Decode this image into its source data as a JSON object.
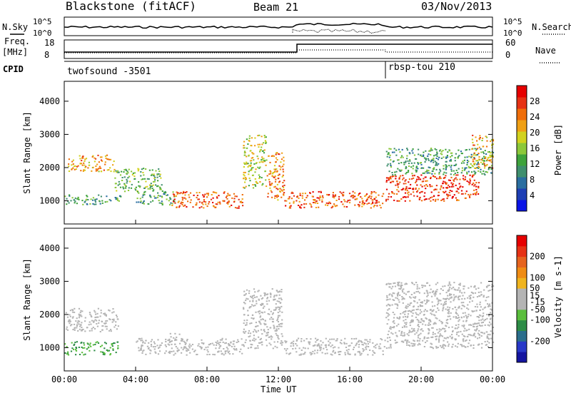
{
  "header": {
    "station": "Blackstone (fitACF)",
    "beam": "Beam 21",
    "date": "03/Nov/2013"
  },
  "status_panels": {
    "nsky_label": "N.Sky",
    "nsearch_label": "N.Search",
    "freq_label_line1": "Freq.",
    "freq_label_line2": "[MHz]",
    "nave_label": "Nave",
    "cpid_label": "CPID",
    "noise_left_ticks": [
      "10^5",
      "10^0"
    ],
    "noise_right_ticks": [
      "10^5",
      "10^0"
    ],
    "freq_left_ticks": [
      "18",
      "8"
    ],
    "nave_right_ticks": [
      "60",
      "0"
    ],
    "cpid_segments": [
      {
        "name": "twofsound -3501",
        "start_hour": 0,
        "end_hour": 18
      },
      {
        "name": "rbsp-tou 210",
        "start_hour": 18,
        "end_hour": 24
      }
    ]
  },
  "x_axis": {
    "label": "Time UT",
    "ticks": [
      "00:00",
      "04:00",
      "08:00",
      "12:00",
      "16:00",
      "20:00",
      "00:00"
    ]
  },
  "colors": {
    "power_scale": [
      "#0a14e6",
      "#1e3fb4",
      "#2a6ea0",
      "#3f8f6e",
      "#3ea33c",
      "#8cc83a",
      "#d2d21e",
      "#f0a014",
      "#f06e0a",
      "#e63214",
      "#e60000"
    ],
    "velocity_scale": [
      "#1414a0",
      "#2838c8",
      "#2a6e8c",
      "#2d8c46",
      "#5abe3c",
      "#b4b4b4",
      "#b4b4b4",
      "#f0b41e",
      "#f08c14",
      "#e6641e",
      "#e63214",
      "#e60000"
    ]
  },
  "chart_data": [
    {
      "type": "heatmap",
      "title": "Power",
      "xlabel": "Time UT",
      "ylabel": "Slant Range [km]",
      "xlim_hours": [
        0,
        24
      ],
      "ylim": [
        300,
        4600
      ],
      "yticks": [
        1000,
        2000,
        3000,
        4000
      ],
      "colorbar": {
        "label": "Power [dB]",
        "ticks": [
          4,
          8,
          12,
          16,
          20,
          24,
          28
        ],
        "range": [
          0,
          32
        ]
      },
      "regions": [
        {
          "t0": 0.0,
          "t1": 3.2,
          "r0": 900,
          "r1": 1200,
          "value": 12
        },
        {
          "t0": 0.2,
          "t1": 2.8,
          "r0": 1900,
          "r1": 2400,
          "value": 22
        },
        {
          "t0": 2.8,
          "t1": 5.5,
          "r0": 1300,
          "r1": 2000,
          "value": 14
        },
        {
          "t0": 4.0,
          "t1": 6.2,
          "r0": 900,
          "r1": 1300,
          "value": 12
        },
        {
          "t0": 6.0,
          "t1": 10.0,
          "r0": 800,
          "r1": 1300,
          "value": 26
        },
        {
          "t0": 10.0,
          "t1": 11.3,
          "r0": 1400,
          "r1": 3000,
          "value": 18
        },
        {
          "t0": 11.3,
          "t1": 12.3,
          "r0": 1000,
          "r1": 2500,
          "value": 24
        },
        {
          "t0": 12.3,
          "t1": 18.0,
          "r0": 800,
          "r1": 1300,
          "value": 26
        },
        {
          "t0": 18.0,
          "t1": 23.2,
          "r0": 1000,
          "r1": 1800,
          "value": 28
        },
        {
          "t0": 18.0,
          "t1": 24.0,
          "r0": 1800,
          "r1": 2600,
          "value": 12
        },
        {
          "t0": 22.8,
          "t1": 24.0,
          "r0": 2000,
          "r1": 3000,
          "value": 22
        }
      ]
    },
    {
      "type": "heatmap",
      "title": "Velocity",
      "xlabel": "Time UT",
      "ylabel": "Slant Range [km]",
      "xlim_hours": [
        0,
        24
      ],
      "ylim": [
        300,
        4600
      ],
      "yticks": [
        1000,
        2000,
        3000,
        4000
      ],
      "colorbar": {
        "label": "Velocity [m s-1]",
        "ticks": [
          200,
          100,
          50,
          15,
          -15,
          -50,
          -100,
          -200
        ],
        "range": [
          -300,
          300
        ]
      },
      "regions": [
        {
          "t0": 0.0,
          "t1": 3.0,
          "r0": 1500,
          "r1": 2200,
          "value": 0
        },
        {
          "t0": 0.0,
          "t1": 3.0,
          "r0": 800,
          "r1": 1200,
          "value": -100
        },
        {
          "t0": 4.0,
          "t1": 6.0,
          "r0": 800,
          "r1": 1300,
          "value": -40
        },
        {
          "t0": 5.8,
          "t1": 6.6,
          "r0": 800,
          "r1": 1500,
          "value": 40
        },
        {
          "t0": 6.6,
          "t1": 10.0,
          "r0": 800,
          "r1": 1300,
          "value": -40
        },
        {
          "t0": 10.0,
          "t1": 12.2,
          "r0": 1000,
          "r1": 2800,
          "value": 40
        },
        {
          "t0": 12.3,
          "t1": 18.0,
          "r0": 800,
          "r1": 1300,
          "value": 0
        },
        {
          "t0": 18.0,
          "t1": 24.0,
          "r0": 1000,
          "r1": 3000,
          "value": 0
        }
      ]
    }
  ]
}
